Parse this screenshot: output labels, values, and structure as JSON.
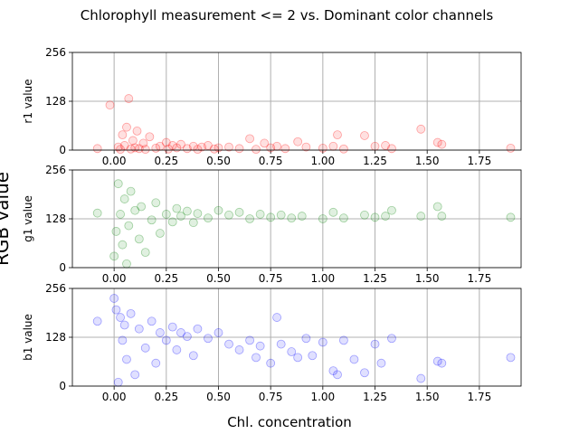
{
  "figure": {
    "title": "Chlorophyll measurement <= 2 vs. Dominant color channels",
    "supylabel": "RGB value",
    "xlabel": "Chl. concentration"
  },
  "chart_data": [
    {
      "type": "scatter",
      "ylabel": "r1 value",
      "color": "#ff0000",
      "xlim": [
        -0.2,
        1.95
      ],
      "ylim": [
        0,
        256
      ],
      "xticks": [
        "0.00",
        "0.25",
        "0.50",
        "0.75",
        "1.00",
        "1.25",
        "1.50",
        "1.75"
      ],
      "yticks": [
        "0",
        "128",
        "256"
      ],
      "grid": true,
      "points": [
        [
          -0.08,
          4
        ],
        [
          -0.02,
          118
        ],
        [
          0.02,
          8
        ],
        [
          0.03,
          2
        ],
        [
          0.04,
          40
        ],
        [
          0.05,
          12
        ],
        [
          0.06,
          60
        ],
        [
          0.08,
          3
        ],
        [
          0.07,
          135
        ],
        [
          0.09,
          25
        ],
        [
          0.1,
          6
        ],
        [
          0.11,
          50
        ],
        [
          0.12,
          4
        ],
        [
          0.14,
          18
        ],
        [
          0.15,
          2
        ],
        [
          0.17,
          35
        ],
        [
          0.2,
          5
        ],
        [
          0.22,
          10
        ],
        [
          0.25,
          20
        ],
        [
          0.26,
          3
        ],
        [
          0.28,
          12
        ],
        [
          0.3,
          6
        ],
        [
          0.32,
          15
        ],
        [
          0.35,
          4
        ],
        [
          0.38,
          10
        ],
        [
          0.4,
          2
        ],
        [
          0.42,
          8
        ],
        [
          0.45,
          12
        ],
        [
          0.48,
          3
        ],
        [
          0.5,
          6
        ],
        [
          0.55,
          8
        ],
        [
          0.6,
          4
        ],
        [
          0.65,
          30
        ],
        [
          0.68,
          2
        ],
        [
          0.72,
          18
        ],
        [
          0.75,
          6
        ],
        [
          0.78,
          10
        ],
        [
          0.82,
          4
        ],
        [
          0.88,
          22
        ],
        [
          0.92,
          8
        ],
        [
          1.0,
          5
        ],
        [
          1.05,
          10
        ],
        [
          1.07,
          40
        ],
        [
          1.1,
          3
        ],
        [
          1.2,
          38
        ],
        [
          1.25,
          10
        ],
        [
          1.3,
          12
        ],
        [
          1.33,
          4
        ],
        [
          1.47,
          55
        ],
        [
          1.55,
          20
        ],
        [
          1.57,
          15
        ],
        [
          1.9,
          5
        ]
      ]
    },
    {
      "type": "scatter",
      "ylabel": "g1 value",
      "color": "#008000",
      "xlim": [
        -0.2,
        1.95
      ],
      "ylim": [
        0,
        256
      ],
      "xticks": [
        "0.00",
        "0.25",
        "0.50",
        "0.75",
        "1.00",
        "1.25",
        "1.50",
        "1.75"
      ],
      "yticks": [
        "0",
        "128",
        "256"
      ],
      "grid": true,
      "points": [
        [
          -0.08,
          143
        ],
        [
          0.0,
          30
        ],
        [
          0.01,
          95
        ],
        [
          0.02,
          220
        ],
        [
          0.03,
          140
        ],
        [
          0.04,
          60
        ],
        [
          0.05,
          180
        ],
        [
          0.06,
          10
        ],
        [
          0.07,
          110
        ],
        [
          0.08,
          200
        ],
        [
          0.1,
          150
        ],
        [
          0.12,
          75
        ],
        [
          0.13,
          160
        ],
        [
          0.15,
          40
        ],
        [
          0.18,
          125
        ],
        [
          0.2,
          170
        ],
        [
          0.22,
          90
        ],
        [
          0.25,
          140
        ],
        [
          0.28,
          120
        ],
        [
          0.3,
          155
        ],
        [
          0.32,
          135
        ],
        [
          0.35,
          148
        ],
        [
          0.38,
          118
        ],
        [
          0.4,
          142
        ],
        [
          0.45,
          130
        ],
        [
          0.5,
          150
        ],
        [
          0.55,
          138
        ],
        [
          0.6,
          145
        ],
        [
          0.65,
          128
        ],
        [
          0.7,
          140
        ],
        [
          0.75,
          132
        ],
        [
          0.8,
          138
        ],
        [
          0.85,
          130
        ],
        [
          0.9,
          135
        ],
        [
          1.0,
          128
        ],
        [
          1.05,
          145
        ],
        [
          1.1,
          130
        ],
        [
          1.2,
          138
        ],
        [
          1.25,
          132
        ],
        [
          1.3,
          135
        ],
        [
          1.33,
          150
        ],
        [
          1.47,
          135
        ],
        [
          1.55,
          160
        ],
        [
          1.57,
          135
        ],
        [
          1.9,
          132
        ]
      ]
    },
    {
      "type": "scatter",
      "ylabel": "b1 value",
      "color": "#0000ff",
      "xlim": [
        -0.2,
        1.95
      ],
      "ylim": [
        0,
        256
      ],
      "xticks": [
        "0.00",
        "0.25",
        "0.50",
        "0.75",
        "1.00",
        "1.25",
        "1.50",
        "1.75"
      ],
      "yticks": [
        "0",
        "128",
        "256"
      ],
      "grid": true,
      "points": [
        [
          -0.08,
          170
        ],
        [
          0.0,
          230
        ],
        [
          0.01,
          200
        ],
        [
          0.02,
          10
        ],
        [
          0.03,
          180
        ],
        [
          0.04,
          120
        ],
        [
          0.05,
          160
        ],
        [
          0.06,
          70
        ],
        [
          0.08,
          190
        ],
        [
          0.1,
          30
        ],
        [
          0.12,
          150
        ],
        [
          0.15,
          100
        ],
        [
          0.18,
          170
        ],
        [
          0.2,
          60
        ],
        [
          0.22,
          140
        ],
        [
          0.25,
          120
        ],
        [
          0.28,
          155
        ],
        [
          0.3,
          95
        ],
        [
          0.32,
          140
        ],
        [
          0.35,
          130
        ],
        [
          0.38,
          80
        ],
        [
          0.4,
          150
        ],
        [
          0.45,
          125
        ],
        [
          0.5,
          140
        ],
        [
          0.55,
          110
        ],
        [
          0.6,
          95
        ],
        [
          0.65,
          120
        ],
        [
          0.68,
          75
        ],
        [
          0.7,
          105
        ],
        [
          0.75,
          60
        ],
        [
          0.78,
          180
        ],
        [
          0.8,
          110
        ],
        [
          0.85,
          90
        ],
        [
          0.88,
          75
        ],
        [
          0.92,
          125
        ],
        [
          0.95,
          80
        ],
        [
          1.0,
          115
        ],
        [
          1.05,
          40
        ],
        [
          1.07,
          30
        ],
        [
          1.1,
          120
        ],
        [
          1.15,
          70
        ],
        [
          1.2,
          35
        ],
        [
          1.25,
          110
        ],
        [
          1.28,
          60
        ],
        [
          1.33,
          125
        ],
        [
          1.47,
          20
        ],
        [
          1.55,
          65
        ],
        [
          1.57,
          60
        ],
        [
          1.9,
          75
        ]
      ]
    }
  ]
}
